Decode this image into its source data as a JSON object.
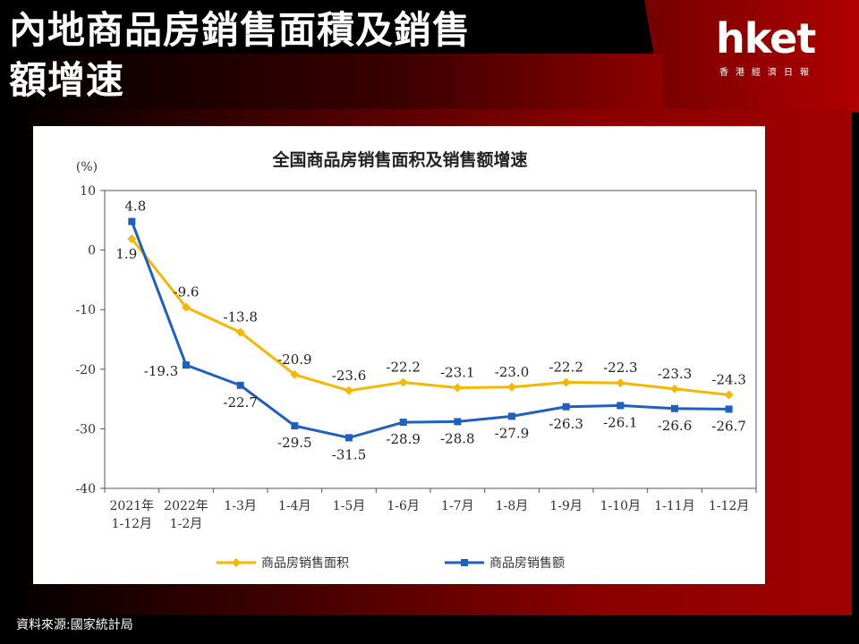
{
  "header": {
    "title": "內地商品房銷售面積及銷售額增速",
    "logo": "hket",
    "logo_sub": "香港經濟日報"
  },
  "footer": {
    "source": "資料來源:國家統計局"
  },
  "colors": {
    "area_series": "#F5B800",
    "sales_series": "#1F5FBF",
    "frame": "#A00000"
  },
  "chart_data": {
    "type": "line",
    "title": "全国商品房销售面积及销售额增速",
    "ylabel": "(%)",
    "ylim": [
      -40,
      10
    ],
    "yticks": [
      10,
      0,
      -10,
      -20,
      -30,
      -40
    ],
    "categories": [
      [
        "2021年",
        "1-12月"
      ],
      [
        "2022年",
        "1-2月"
      ],
      [
        "1-3月"
      ],
      [
        "1-4月"
      ],
      [
        "1-5月"
      ],
      [
        "1-6月"
      ],
      [
        "1-7月"
      ],
      [
        "1-8月"
      ],
      [
        "1-9月"
      ],
      [
        "1-10月"
      ],
      [
        "1-11月"
      ],
      [
        "1-12月"
      ]
    ],
    "series": [
      {
        "name": "商品房销售面积",
        "values": [
          1.9,
          -9.6,
          -13.8,
          -20.9,
          -23.6,
          -22.2,
          -23.1,
          -23.0,
          -22.2,
          -22.3,
          -23.3,
          -24.3
        ]
      },
      {
        "name": "商品房销售额",
        "values": [
          4.8,
          -19.3,
          -22.7,
          -29.5,
          -31.5,
          -28.9,
          -28.8,
          -27.9,
          -26.3,
          -26.1,
          -26.6,
          -26.7
        ]
      }
    ],
    "grid": false,
    "legend_position": "bottom"
  }
}
